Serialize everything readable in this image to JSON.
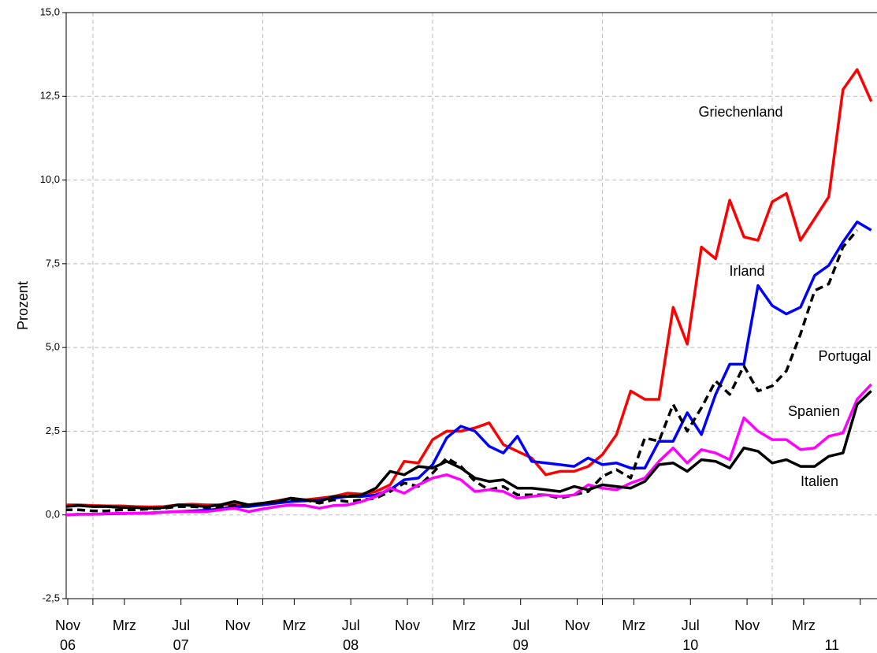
{
  "chart_data": {
    "type": "line",
    "y_label": "Prozent",
    "categories": [
      "Nov",
      null,
      null,
      null,
      "Mrz",
      null,
      null,
      null,
      "Jul",
      null,
      null,
      null,
      "Nov",
      null,
      null,
      null,
      "Mrz",
      null,
      null,
      null,
      "Jul",
      null,
      null,
      null,
      "Nov",
      null,
      null,
      null,
      "Mrz",
      null,
      null,
      null,
      "Jul",
      null,
      null,
      null,
      "Nov",
      null,
      null,
      null,
      "Mrz",
      null,
      null,
      null,
      "Jul",
      null,
      null,
      null,
      "Nov",
      null,
      null,
      null,
      "Mrz",
      null,
      null,
      null,
      null,
      null
    ],
    "years": [
      "06",
      "07",
      "08",
      "09",
      "10",
      "11"
    ],
    "ylim": [
      -2.5,
      15
    ],
    "yticks": [
      {
        "value": -2.5,
        "label": "-2,5"
      },
      {
        "value": 0,
        "label": "0,0"
      },
      {
        "value": 2.5,
        "label": "2,5"
      },
      {
        "value": 5,
        "label": "5,0"
      },
      {
        "value": 7.5,
        "label": "7,5"
      },
      {
        "value": 10,
        "label": "10,0"
      },
      {
        "value": 12.5,
        "label": "12,5"
      },
      {
        "value": 15,
        "label": "15,0"
      }
    ],
    "grid": true,
    "series": [
      {
        "name": "Griechenland",
        "color": "#ff0000",
        "style": "solid",
        "values": [
          0.3,
          0.3,
          0.28,
          0.27,
          0.27,
          0.25,
          0.24,
          0.25,
          0.3,
          0.32,
          0.3,
          0.3,
          0.33,
          0.3,
          0.35,
          0.42,
          0.5,
          0.45,
          0.5,
          0.55,
          0.65,
          0.62,
          0.7,
          0.9,
          1.6,
          1.55,
          2.25,
          2.5,
          2.5,
          2.6,
          2.75,
          2.1,
          1.9,
          1.7,
          1.2,
          1.3,
          1.3,
          1.45,
          1.8,
          2.4,
          3.7,
          3.45,
          3.45,
          6.2,
          5.1,
          8.0,
          7.65,
          9.4,
          8.3,
          8.2,
          9.35,
          9.6,
          8.2,
          8.85,
          9.5,
          12.7,
          13.3,
          12.35
        ]
      },
      {
        "name": "Irland",
        "color": "#0000ff",
        "style": "solid",
        "values": [
          0.0,
          0.02,
          0.02,
          0.03,
          0.04,
          0.05,
          0.06,
          0.08,
          0.1,
          0.12,
          0.14,
          0.18,
          0.25,
          0.25,
          0.3,
          0.35,
          0.4,
          0.42,
          0.45,
          0.5,
          0.55,
          0.55,
          0.6,
          0.75,
          1.05,
          1.1,
          1.5,
          2.3,
          2.65,
          2.5,
          2.05,
          1.85,
          2.35,
          1.6,
          1.55,
          1.5,
          1.45,
          1.7,
          1.5,
          1.55,
          1.4,
          1.4,
          2.2,
          2.2,
          3.05,
          2.4,
          3.6,
          4.5,
          4.5,
          6.85,
          6.25,
          6.0,
          6.2,
          7.15,
          7.45,
          8.15,
          8.75,
          8.5
        ]
      },
      {
        "name": "Portugal",
        "color": "#000000",
        "style": "dashed",
        "values": [
          0.15,
          0.15,
          0.12,
          0.12,
          0.15,
          0.15,
          0.18,
          0.2,
          0.25,
          0.25,
          0.22,
          0.25,
          0.28,
          0.3,
          0.35,
          0.4,
          0.45,
          0.45,
          0.35,
          0.45,
          0.4,
          0.45,
          0.5,
          0.7,
          0.95,
          0.85,
          1.25,
          1.7,
          1.45,
          1.0,
          0.75,
          0.85,
          0.6,
          0.6,
          0.6,
          0.5,
          0.6,
          0.7,
          1.15,
          1.35,
          1.1,
          2.3,
          2.2,
          3.3,
          2.5,
          3.2,
          4.0,
          3.6,
          4.45,
          3.7,
          3.85,
          4.3,
          5.4,
          6.7,
          6.9,
          8.0,
          8.5,
          null
        ]
      },
      {
        "name": "Spanien",
        "color": "#ff00ff",
        "style": "solid",
        "values": [
          0.0,
          0.02,
          0.02,
          0.04,
          0.05,
          0.05,
          0.05,
          0.08,
          0.1,
          0.1,
          0.1,
          0.15,
          0.2,
          0.1,
          0.18,
          0.25,
          0.3,
          0.28,
          0.2,
          0.28,
          0.3,
          0.4,
          0.55,
          0.8,
          0.65,
          0.9,
          1.1,
          1.2,
          1.05,
          0.7,
          0.75,
          0.7,
          0.5,
          0.55,
          0.6,
          0.55,
          0.6,
          0.9,
          0.8,
          0.75,
          0.95,
          1.1,
          1.6,
          2.0,
          1.55,
          1.95,
          1.85,
          1.65,
          2.9,
          2.5,
          2.25,
          2.25,
          1.95,
          2.0,
          2.35,
          2.45,
          3.45,
          3.9
        ]
      },
      {
        "name": "Italien",
        "color": "#000000",
        "style": "solid",
        "values": [
          0.25,
          0.28,
          0.25,
          0.25,
          0.22,
          0.22,
          0.2,
          0.22,
          0.3,
          0.28,
          0.25,
          0.3,
          0.4,
          0.3,
          0.35,
          0.4,
          0.5,
          0.45,
          0.4,
          0.55,
          0.55,
          0.6,
          0.8,
          1.3,
          1.2,
          1.45,
          1.4,
          1.6,
          1.4,
          1.1,
          1.0,
          1.05,
          0.8,
          0.8,
          0.75,
          0.7,
          0.85,
          0.75,
          0.9,
          0.85,
          0.8,
          1.0,
          1.5,
          1.55,
          1.3,
          1.65,
          1.6,
          1.4,
          2.0,
          1.9,
          1.55,
          1.65,
          1.45,
          1.45,
          1.75,
          1.85,
          3.3,
          3.7
        ]
      }
    ]
  }
}
